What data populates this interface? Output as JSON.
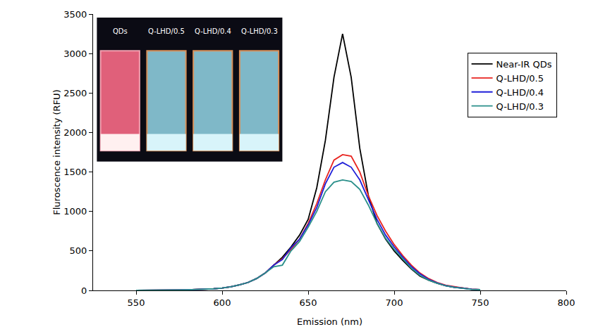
{
  "chart_data": {
    "type": "line",
    "xlabel": "Emission (nm)",
    "ylabel": "Fluroscence intensity (RFU)",
    "x": [
      550,
      555,
      560,
      565,
      570,
      575,
      580,
      585,
      590,
      595,
      600,
      605,
      610,
      615,
      620,
      625,
      630,
      635,
      640,
      645,
      650,
      655,
      660,
      665,
      670,
      675,
      680,
      685,
      690,
      695,
      700,
      705,
      710,
      715,
      720,
      725,
      730,
      735,
      740,
      745,
      750
    ],
    "series": [
      {
        "name": "Near-IR QDs",
        "color": "#000000",
        "values": [
          0,
          0,
          2,
          3,
          5,
          6,
          8,
          10,
          15,
          20,
          30,
          45,
          70,
          100,
          150,
          220,
          320,
          420,
          550,
          700,
          900,
          1300,
          1900,
          2700,
          3250,
          2700,
          1800,
          1200,
          850,
          650,
          500,
          380,
          270,
          180,
          130,
          90,
          60,
          40,
          30,
          15,
          10
        ]
      },
      {
        "name": "Q-LHD/0.5",
        "color": "#e8231f",
        "values": [
          0,
          0,
          2,
          3,
          5,
          6,
          8,
          10,
          15,
          20,
          30,
          45,
          70,
          100,
          150,
          220,
          320,
          400,
          520,
          650,
          850,
          1100,
          1400,
          1650,
          1720,
          1700,
          1500,
          1200,
          950,
          750,
          580,
          440,
          320,
          220,
          150,
          100,
          65,
          45,
          30,
          15,
          10
        ]
      },
      {
        "name": "Q-LHD/0.4",
        "color": "#1f1fd8",
        "values": [
          0,
          0,
          2,
          3,
          5,
          6,
          8,
          10,
          15,
          20,
          30,
          45,
          70,
          100,
          150,
          220,
          320,
          390,
          540,
          650,
          830,
          1050,
          1350,
          1560,
          1620,
          1560,
          1400,
          1150,
          900,
          700,
          550,
          420,
          300,
          210,
          140,
          95,
          60,
          40,
          28,
          14,
          10
        ]
      },
      {
        "name": "Q-LHD/0.3",
        "color": "#2a8f8a",
        "values": [
          0,
          0,
          2,
          3,
          5,
          6,
          8,
          10,
          15,
          20,
          30,
          45,
          70,
          100,
          150,
          220,
          300,
          320,
          500,
          620,
          800,
          1000,
          1250,
          1370,
          1400,
          1380,
          1280,
          1080,
          850,
          660,
          520,
          400,
          280,
          190,
          130,
          90,
          58,
          38,
          26,
          13,
          9
        ]
      }
    ],
    "xlim": [
      525,
      800
    ],
    "xticks": [
      550,
      600,
      650,
      700,
      750,
      800
    ],
    "ylim": [
      0,
      3500
    ],
    "yticks": [
      0,
      500,
      1000,
      1500,
      2000,
      2500,
      3000,
      3500
    ],
    "grid": false,
    "legend": "upper right",
    "annotations": [
      "QDs",
      "Q-LHD/0.5",
      "Q-LHD/0.4",
      "Q-LHD/0.3"
    ]
  }
}
